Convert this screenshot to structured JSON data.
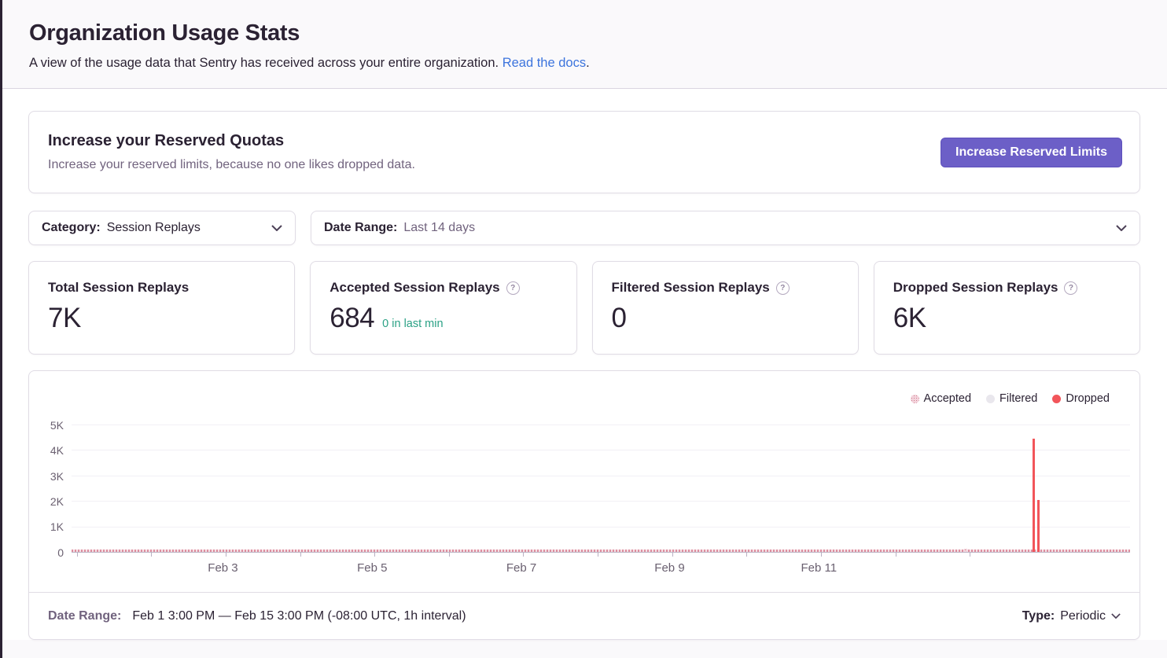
{
  "page": {
    "title": "Organization Usage Stats",
    "subtitle": "A view of the usage data that Sentry has received across your entire organization.",
    "subtitle_link": "Read the docs",
    "subtitle_period": "."
  },
  "quota_card": {
    "title": "Increase your Reserved Quotas",
    "description": "Increase your reserved limits, because no one likes dropped data.",
    "button_label": "Increase Reserved Limits"
  },
  "filters": {
    "category": {
      "label": "Category:",
      "value": "Session Replays"
    },
    "date_range": {
      "label": "Date Range:",
      "value": "Last 14 days"
    }
  },
  "stat_cards": [
    {
      "title": "Total Session Replays",
      "value": "7K"
    },
    {
      "title": "Accepted Session Replays",
      "value": "684",
      "sub_value": "0 in last min",
      "help_glyph": "?"
    },
    {
      "title": "Filtered Session Replays",
      "value": "0",
      "help_glyph": "?"
    },
    {
      "title": "Dropped Session Replays",
      "value": "6K",
      "help_glyph": "?"
    }
  ],
  "chart_data": {
    "type": "bar",
    "interval": "1h",
    "x_range": [
      "Feb 1 3:00 PM",
      "Feb 15 3:00 PM"
    ],
    "y_axis": {
      "max": 5000,
      "ticks": [
        "0",
        "1K",
        "2K",
        "3K",
        "4K",
        "5K"
      ]
    },
    "x_axis": {
      "labels": [
        {
          "text": "Feb 3"
        },
        {
          "text": "Feb 5"
        },
        {
          "text": "Feb 7"
        },
        {
          "text": "Feb 9"
        },
        {
          "text": "Feb 11"
        }
      ],
      "tick_layout": {
        "start_frac": 0.005,
        "step_frac": 0.0703,
        "count": 13
      }
    },
    "legend": [
      {
        "label": "Accepted",
        "color": "#CF7A8E",
        "style": "pattern"
      },
      {
        "label": "Filtered",
        "color": "#E9E7ED",
        "style": "solid"
      },
      {
        "label": "Dropped",
        "color": "#F2555A",
        "style": "solid"
      }
    ],
    "series": [
      {
        "name": "Accepted",
        "note": "tiny hourly values hugging zero across the whole range, total 684",
        "visible_points": [
          {
            "x": "Feb 13",
            "x_frac": 0.843,
            "value": 130
          }
        ]
      },
      {
        "name": "Filtered",
        "note": "all zero",
        "visible_points": []
      },
      {
        "name": "Dropped",
        "note": "zero except two adjacent hourly spikes around Feb 14",
        "visible_points": [
          {
            "x": "Feb 14",
            "x_frac": 0.908,
            "value": 4450
          },
          {
            "x": "Feb 14",
            "x_frac": 0.9125,
            "value": 2050
          }
        ]
      }
    ],
    "totals": {
      "total": "7K",
      "accepted": 684,
      "filtered": 0,
      "dropped": "6K"
    }
  },
  "footer": {
    "date_range_label": "Date Range:",
    "date_range_value": "Feb 1 3:00 PM — Feb 15 3:00 PM (-08:00 UTC, 1h interval)",
    "type_label": "Type:",
    "type_value": "Periodic"
  },
  "colors": {
    "accent_purple": "#6C5FC7",
    "link_blue": "#3C74DD",
    "success_green": "#2BA185",
    "dropped_red": "#F2555A",
    "accepted_pink": "#CF7A8E",
    "text_dark": "#2B2233",
    "text_muted": "#71637E",
    "border": "#E0DCE5",
    "page_bg": "#FAF9FB"
  }
}
